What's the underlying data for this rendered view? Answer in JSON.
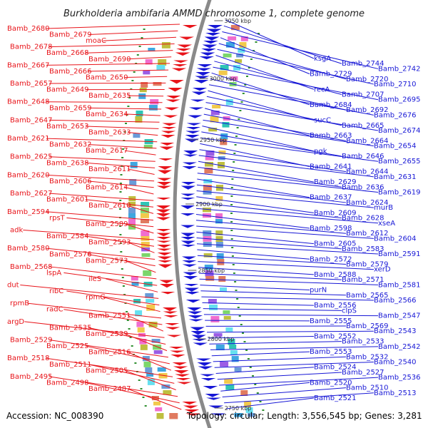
{
  "title": "Burkholderia ambifaria AMMD chromosome 1, complete genome",
  "accession_text": "Accession: NC_008390",
  "topology_text": "Topology: circular; Length: 3,556,545 bp; Genes: 3,281",
  "colors": {
    "left_strand": "#e8141a",
    "right_strand": "#1717d6",
    "backbone": "#8a8a8a",
    "tick_marks": "#2f8f2f"
  },
  "ticks": [
    "3050 kbp",
    "3000 kbp",
    "2950 kbp",
    "2900 kbp",
    "2850 kbp",
    "2800 kbp",
    "2750 kbp"
  ],
  "left_labels": [
    "Bamb_2680",
    "Bamb_2679",
    "moaC",
    "Bamb_2678",
    "Bamb_2668",
    "Bamb_2690",
    "Bamb_2667",
    "Bamb_2666",
    "Bamb_2650",
    "Bamb_2657",
    "Bamb_2649",
    "Bamb_2635",
    "Bamb_2648",
    "Bamb_2659",
    "Bamb_2634",
    "Bamb_2647",
    "Bamb_2653",
    "Bamb_2633",
    "Bamb_2621",
    "Bamb_2632",
    "Bamb_2617",
    "Bamb_2625",
    "Bamb_2638",
    "Bamb_2611",
    "Bamb_2620",
    "Bamb_2606",
    "Bamb_2614",
    "Bamb_2627",
    "Bamb_2601",
    "Bamb_2610",
    "Bamb_2594",
    "rpsT",
    "Bamb_2589",
    "adk",
    "Bamb_2584",
    "Bamb_2593",
    "Bamb_2580",
    "Bamb_2576",
    "Bamb_2573",
    "Bamb_2568",
    "lspA",
    "ileS",
    "dut",
    "ribC",
    "rpmG",
    "rpmB",
    "radC",
    "Bamb_2551",
    "argD",
    "Bamb_2535",
    "Bamb_2539",
    "Bamb_2529",
    "Bamb_2525",
    "Bamb_2516",
    "Bamb_2518",
    "Bamb_2511",
    "Bamb_2505",
    "Bamb_2495",
    "Bamb_2498",
    "Bamb_2487"
  ],
  "right_labels": [
    "ksgA",
    "Bamb_2744",
    "Bamb_2742",
    "Bamb_2729",
    "Bamb_2720",
    "Bamb_2710",
    "recA",
    "Bamb_2707",
    "Bamb_2695",
    "Bamb_2684",
    "Bamb_2692",
    "Bamb_2676",
    "sucC",
    "Bamb_2665",
    "Bamb_2674",
    "Bamb_2663",
    "Bamb_2664",
    "Bamb_2654",
    "pgk",
    "Bamb_2646",
    "Bamb_2655",
    "Bamb_2641",
    "Bamb_2644",
    "Bamb_2631",
    "Bamb_2629",
    "Bamb_2636",
    "Bamb_2619",
    "Bamb_2637",
    "Bamb_2624",
    "murB",
    "Bamb_2609",
    "Bamb_2628",
    "xseA",
    "Bamb_2598",
    "Bamb_2612",
    "Bamb_2604",
    "Bamb_2605",
    "Bamb_2583",
    "Bamb_2591",
    "Bamb_2572",
    "Bamb_2579",
    "xerD",
    "Bamb_2588",
    "Bamb_2571",
    "Bamb_2581",
    "purN",
    "Bamb_2565",
    "Bamb_2566",
    "Bamb_2556",
    "clpS",
    "Bamb_2547",
    "Bamb_2555",
    "Bamb_2569",
    "Bamb_2543",
    "Bamb_2552",
    "Bamb_2533",
    "Bamb_2542",
    "Bamb_2553",
    "Bamb_2532",
    "Bamb_2540",
    "Bamb_2524",
    "Bamb_2527",
    "Bamb_2536",
    "Bamb_2520",
    "Bamb_2510",
    "Bamb_2513",
    "Bamb_2521"
  ]
}
